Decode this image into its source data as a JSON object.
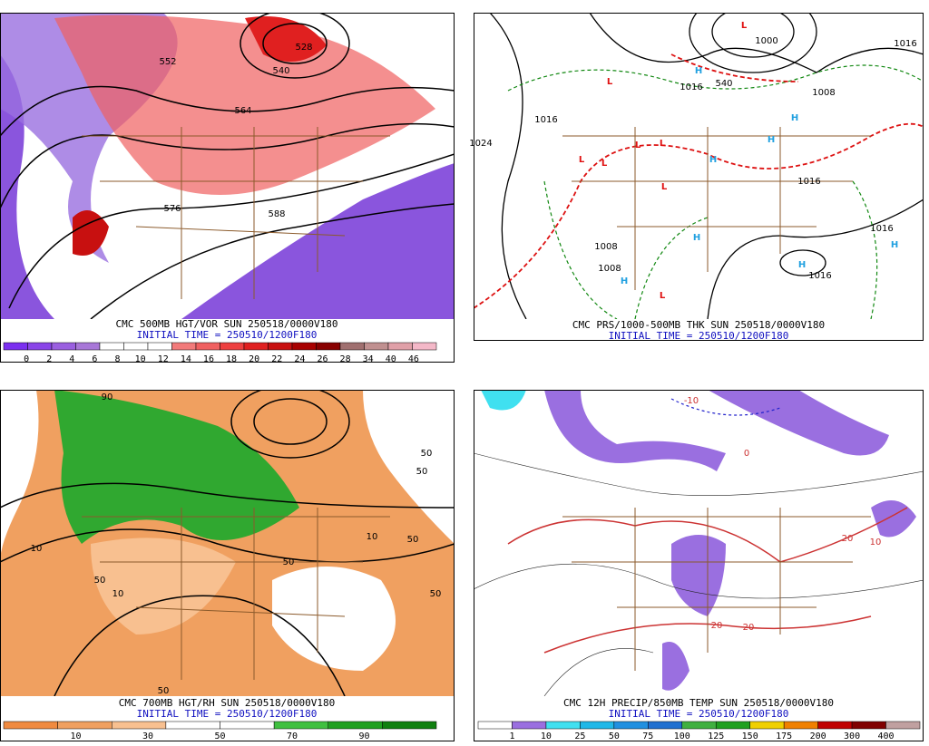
{
  "panels": [
    {
      "title": "CMC 500MB HGT/VOR SUN 250518/0000V180",
      "initial_time": "INITIAL TIME = 250510/1200F180",
      "colorbar": {
        "labels": [
          "0",
          "2",
          "4",
          "6",
          "8",
          "10",
          "12",
          "14",
          "16",
          "18",
          "20",
          "22",
          "24",
          "26",
          "28",
          "34",
          "40",
          "46"
        ],
        "colors": [
          "#7b2ff0",
          "#8a45e8",
          "#9a5fe0",
          "#a877d8",
          "#ffffff",
          "#ffffff",
          "#ffffff",
          "#f27a7a",
          "#f06060",
          "#ee4040",
          "#e02020",
          "#c81010",
          "#a80000",
          "#880000",
          "#a07070",
          "#c09090",
          "#e0a0a8",
          "#f4b8c8"
        ]
      },
      "map_labels": [
        "528",
        "552",
        "540",
        "564",
        "576",
        "588"
      ]
    },
    {
      "title": "CMC PRS/1000-500MB THK SUN 250518/0000V180",
      "initial_time": "INITIAL TIME = 250510/1200F180",
      "map_labels": [
        "L",
        "L",
        "L",
        "L",
        "L",
        "L",
        "L",
        "L",
        "H",
        "H",
        "H",
        "H",
        "H",
        "H",
        "H",
        "H",
        "1000",
        "1016",
        "1016",
        "1008",
        "1016",
        "1016",
        "1016",
        "1016",
        "1008",
        "1008",
        "540",
        "1024"
      ]
    },
    {
      "title": "CMC 700MB HGT/RH SUN 250518/0000V180",
      "initial_time": "INITIAL TIME = 250510/1200F180",
      "colorbar": {
        "labels": [
          "10",
          "30",
          "50",
          "70",
          "90"
        ],
        "colors": [
          "#f08a40",
          "#f0a060",
          "#f8c090",
          "#ffffff",
          "#ffffff",
          "#40c040",
          "#20a020",
          "#108010"
        ]
      },
      "map_labels": [
        "90",
        "50",
        "50",
        "10",
        "50",
        "10",
        "50",
        "50",
        "10",
        "50",
        "50"
      ]
    },
    {
      "title": "CMC 12H PRECIP/850MB TEMP SUN 250518/0000V180",
      "initial_time": "INITIAL TIME = 250510/1200F180",
      "colorbar": {
        "labels": [
          "1",
          "10",
          "25",
          "50",
          "75",
          "100",
          "125",
          "150",
          "175",
          "200",
          "300",
          "400"
        ],
        "colors": [
          "#ffffff",
          "#9a6fe0",
          "#40e0f0",
          "#20b8e8",
          "#2090e0",
          "#2070d0",
          "#40b040",
          "#20a020",
          "#f0d000",
          "#f08000",
          "#c00000",
          "#800000",
          "#c0a0a0"
        ]
      },
      "map_labels": [
        "-10",
        "0",
        "10",
        "20",
        "20",
        "20"
      ]
    }
  ]
}
